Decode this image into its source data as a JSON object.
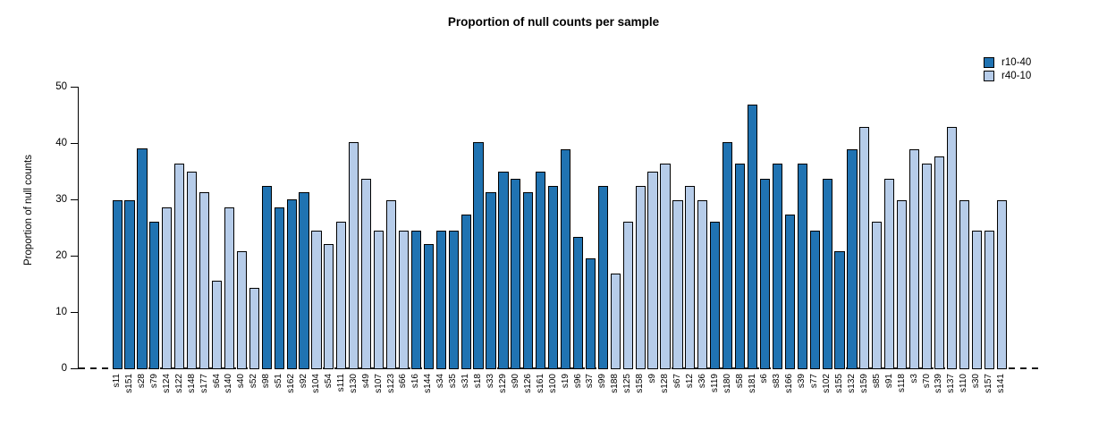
{
  "chart_data": {
    "type": "bar",
    "title": "Proportion of null counts per sample",
    "xlabel": "",
    "ylabel": "Proportion of null counts",
    "ylim": [
      0,
      50
    ],
    "yticks": [
      0,
      10,
      20,
      30,
      40,
      50
    ],
    "grid": false,
    "baseline": {
      "y": 0,
      "style": "dashed"
    },
    "legend_position": "top-right",
    "series_legend": [
      {
        "name": "r10-40",
        "color": "#2073b2"
      },
      {
        "name": "r40-10",
        "color": "#b6cce9"
      }
    ],
    "bars": [
      {
        "label": "s11",
        "value": 29.8,
        "series": "r10-40"
      },
      {
        "label": "s151",
        "value": 29.8,
        "series": "r10-40"
      },
      {
        "label": "s28",
        "value": 39.0,
        "series": "r10-40"
      },
      {
        "label": "s79",
        "value": 26.0,
        "series": "r10-40"
      },
      {
        "label": "s124",
        "value": 28.6,
        "series": "r40-10"
      },
      {
        "label": "s122",
        "value": 36.4,
        "series": "r40-10"
      },
      {
        "label": "s148",
        "value": 35.0,
        "series": "r40-10"
      },
      {
        "label": "s177",
        "value": 31.2,
        "series": "r40-10"
      },
      {
        "label": "s64",
        "value": 15.6,
        "series": "r40-10"
      },
      {
        "label": "s140",
        "value": 28.5,
        "series": "r40-10"
      },
      {
        "label": "s40",
        "value": 20.8,
        "series": "r40-10"
      },
      {
        "label": "s52",
        "value": 14.3,
        "series": "r40-10"
      },
      {
        "label": "s98",
        "value": 32.4,
        "series": "r10-40"
      },
      {
        "label": "s51",
        "value": 28.6,
        "series": "r10-40"
      },
      {
        "label": "s162",
        "value": 30.0,
        "series": "r10-40"
      },
      {
        "label": "s92",
        "value": 31.2,
        "series": "r10-40"
      },
      {
        "label": "s104",
        "value": 24.5,
        "series": "r40-10"
      },
      {
        "label": "s54",
        "value": 22.1,
        "series": "r40-10"
      },
      {
        "label": "s111",
        "value": 26.0,
        "series": "r40-10"
      },
      {
        "label": "s130",
        "value": 40.2,
        "series": "r40-10"
      },
      {
        "label": "s49",
        "value": 33.7,
        "series": "r40-10"
      },
      {
        "label": "s107",
        "value": 24.5,
        "series": "r40-10"
      },
      {
        "label": "s123",
        "value": 29.8,
        "series": "r40-10"
      },
      {
        "label": "s66",
        "value": 24.5,
        "series": "r40-10"
      },
      {
        "label": "s16",
        "value": 24.5,
        "series": "r10-40"
      },
      {
        "label": "s144",
        "value": 22.1,
        "series": "r10-40"
      },
      {
        "label": "s34",
        "value": 24.5,
        "series": "r10-40"
      },
      {
        "label": "s35",
        "value": 24.5,
        "series": "r10-40"
      },
      {
        "label": "s31",
        "value": 27.3,
        "series": "r10-40"
      },
      {
        "label": "s18",
        "value": 40.1,
        "series": "r10-40"
      },
      {
        "label": "s33",
        "value": 31.2,
        "series": "r10-40"
      },
      {
        "label": "s129",
        "value": 35.0,
        "series": "r10-40"
      },
      {
        "label": "s90",
        "value": 33.7,
        "series": "r10-40"
      },
      {
        "label": "s126",
        "value": 31.2,
        "series": "r10-40"
      },
      {
        "label": "s161",
        "value": 35.0,
        "series": "r10-40"
      },
      {
        "label": "s100",
        "value": 32.4,
        "series": "r10-40"
      },
      {
        "label": "s19",
        "value": 38.9,
        "series": "r10-40"
      },
      {
        "label": "s96",
        "value": 23.4,
        "series": "r10-40"
      },
      {
        "label": "s37",
        "value": 19.6,
        "series": "r10-40"
      },
      {
        "label": "s99",
        "value": 32.4,
        "series": "r10-40"
      },
      {
        "label": "s188",
        "value": 16.9,
        "series": "r40-10"
      },
      {
        "label": "s125",
        "value": 26.0,
        "series": "r40-10"
      },
      {
        "label": "s158",
        "value": 32.4,
        "series": "r40-10"
      },
      {
        "label": "s9",
        "value": 35.0,
        "series": "r40-10"
      },
      {
        "label": "s128",
        "value": 36.4,
        "series": "r40-10"
      },
      {
        "label": "s67",
        "value": 29.8,
        "series": "r40-10"
      },
      {
        "label": "s12",
        "value": 32.4,
        "series": "r40-10"
      },
      {
        "label": "s36",
        "value": 29.8,
        "series": "r40-10"
      },
      {
        "label": "s119",
        "value": 26.0,
        "series": "r10-40"
      },
      {
        "label": "s180",
        "value": 40.2,
        "series": "r10-40"
      },
      {
        "label": "s58",
        "value": 36.4,
        "series": "r10-40"
      },
      {
        "label": "s181",
        "value": 46.8,
        "series": "r10-40"
      },
      {
        "label": "s6",
        "value": 33.7,
        "series": "r10-40"
      },
      {
        "label": "s83",
        "value": 36.4,
        "series": "r10-40"
      },
      {
        "label": "s166",
        "value": 27.3,
        "series": "r10-40"
      },
      {
        "label": "s39",
        "value": 36.4,
        "series": "r10-40"
      },
      {
        "label": "s77",
        "value": 24.5,
        "series": "r10-40"
      },
      {
        "label": "s102",
        "value": 33.7,
        "series": "r10-40"
      },
      {
        "label": "s155",
        "value": 20.8,
        "series": "r10-40"
      },
      {
        "label": "s132",
        "value": 38.9,
        "series": "r10-40"
      },
      {
        "label": "s159",
        "value": 42.8,
        "series": "r40-10"
      },
      {
        "label": "s85",
        "value": 26.0,
        "series": "r40-10"
      },
      {
        "label": "s91",
        "value": 33.7,
        "series": "r40-10"
      },
      {
        "label": "s118",
        "value": 29.8,
        "series": "r40-10"
      },
      {
        "label": "s3",
        "value": 38.9,
        "series": "r40-10"
      },
      {
        "label": "s70",
        "value": 36.4,
        "series": "r40-10"
      },
      {
        "label": "s139",
        "value": 37.6,
        "series": "r40-10"
      },
      {
        "label": "s137",
        "value": 42.8,
        "series": "r40-10"
      },
      {
        "label": "s110",
        "value": 29.8,
        "series": "r40-10"
      },
      {
        "label": "s30",
        "value": 24.5,
        "series": "r40-10"
      },
      {
        "label": "s157",
        "value": 24.5,
        "series": "r40-10"
      },
      {
        "label": "s141",
        "value": 29.8,
        "series": "r40-10"
      }
    ]
  }
}
